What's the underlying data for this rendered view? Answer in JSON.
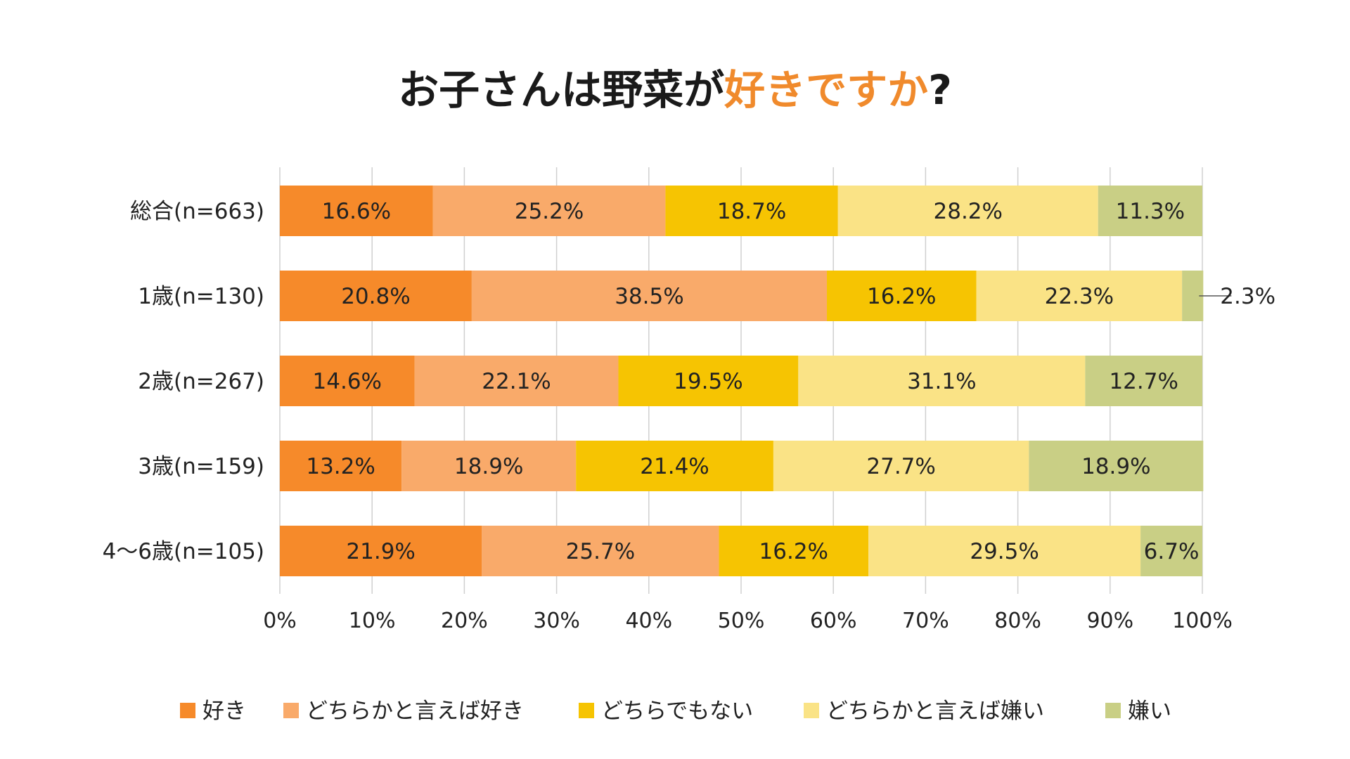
{
  "title": {
    "plain": "お子さんは野菜が",
    "highlight": "好きですか",
    "suffix": "?",
    "highlight_color": "#f08a2c",
    "text_color": "#1a1a1a"
  },
  "chart_data": {
    "type": "bar",
    "orientation": "horizontal",
    "stacked": true,
    "percent": true,
    "categories": [
      "総合(n=663)",
      "1歳(n=130)",
      "2歳(n=267)",
      "3歳(n=159)",
      "4〜6歳(n=105)"
    ],
    "series": [
      {
        "name": "好き",
        "color": "#f68a2a",
        "values": [
          16.6,
          20.8,
          14.6,
          13.2,
          21.9
        ]
      },
      {
        "name": "どちらかと言えば好き",
        "color": "#f9aa6a",
        "values": [
          25.2,
          38.5,
          22.1,
          18.9,
          25.7
        ]
      },
      {
        "name": "どちらでもない",
        "color": "#f6c402",
        "values": [
          18.7,
          16.2,
          19.5,
          21.4,
          16.2
        ]
      },
      {
        "name": "どちらかと言えば嫌い",
        "color": "#fae386",
        "values": [
          28.2,
          22.3,
          31.1,
          27.7,
          29.5
        ]
      },
      {
        "name": "嫌い",
        "color": "#c9cf85",
        "values": [
          11.3,
          2.3,
          12.7,
          18.9,
          6.7
        ]
      }
    ],
    "data_labels": [
      [
        "16.6%",
        "25.2%",
        "18.7%",
        "28.2%",
        "11.3%"
      ],
      [
        "20.8%",
        "38.5%",
        "16.2%",
        "22.3%",
        "2.3%"
      ],
      [
        "14.6%",
        "22.1%",
        "19.5%",
        "31.1%",
        "12.7%"
      ],
      [
        "13.2%",
        "18.9%",
        "21.4%",
        "27.7%",
        "18.9%"
      ],
      [
        "21.9%",
        "25.7%",
        "16.2%",
        "29.5%",
        "6.7%"
      ]
    ],
    "xlim": [
      0,
      100
    ],
    "x_ticks": [
      0,
      10,
      20,
      30,
      40,
      50,
      60,
      70,
      80,
      90,
      100
    ],
    "x_tick_labels": [
      "0%",
      "10%",
      "20%",
      "30%",
      "40%",
      "50%",
      "60%",
      "70%",
      "80%",
      "90%",
      "100%"
    ],
    "grid": "vertical",
    "grid_color": "#d0d0d0",
    "legend_position": "bottom"
  }
}
